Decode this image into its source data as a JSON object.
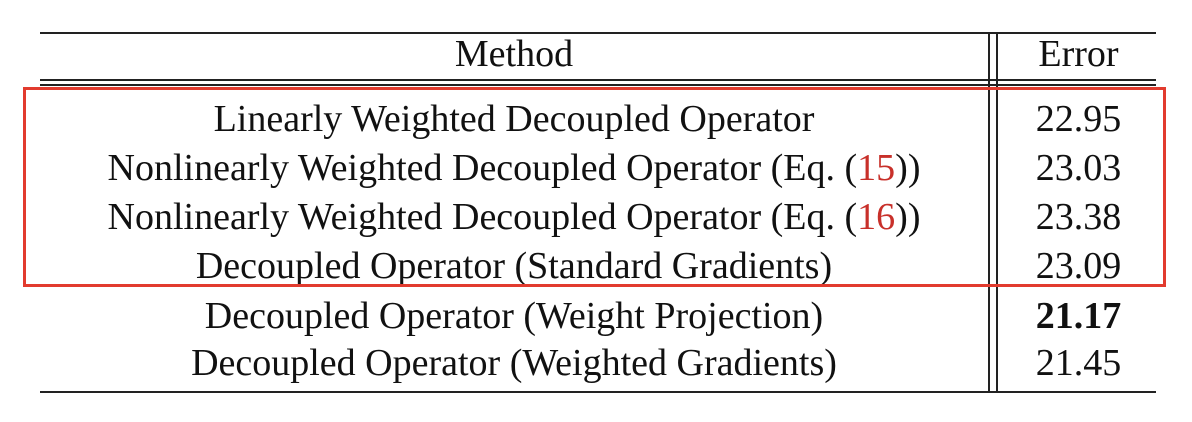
{
  "table": {
    "headers": {
      "method": "Method",
      "error": "Error"
    },
    "rows": [
      {
        "method_prefix": "Linearly Weighted Decoupled Operator",
        "ref": "",
        "method_suffix": "",
        "error": "22.95",
        "bold": false
      },
      {
        "method_prefix": "Nonlinearly Weighted Decoupled Operator (Eq. (",
        "ref": "15",
        "method_suffix": "))",
        "error": "23.03",
        "bold": false
      },
      {
        "method_prefix": "Nonlinearly Weighted Decoupled Operator (Eq. (",
        "ref": "16",
        "method_suffix": "))",
        "error": "23.38",
        "bold": false
      },
      {
        "method_prefix": "Decoupled Operator (Standard Gradients)",
        "ref": "",
        "method_suffix": "",
        "error": "23.09",
        "bold": false
      },
      {
        "method_prefix": "Decoupled Operator (Weight Projection)",
        "ref": "",
        "method_suffix": "",
        "error": "21.17",
        "bold": true
      },
      {
        "method_prefix": "Decoupled Operator (Weighted Gradients)",
        "ref": "",
        "method_suffix": "",
        "error": "21.45",
        "bold": false
      }
    ]
  },
  "colors": {
    "highlight_box": "#e23b2e",
    "reference_link": "#c8302a",
    "rules": "#222222",
    "text": "#111111"
  }
}
